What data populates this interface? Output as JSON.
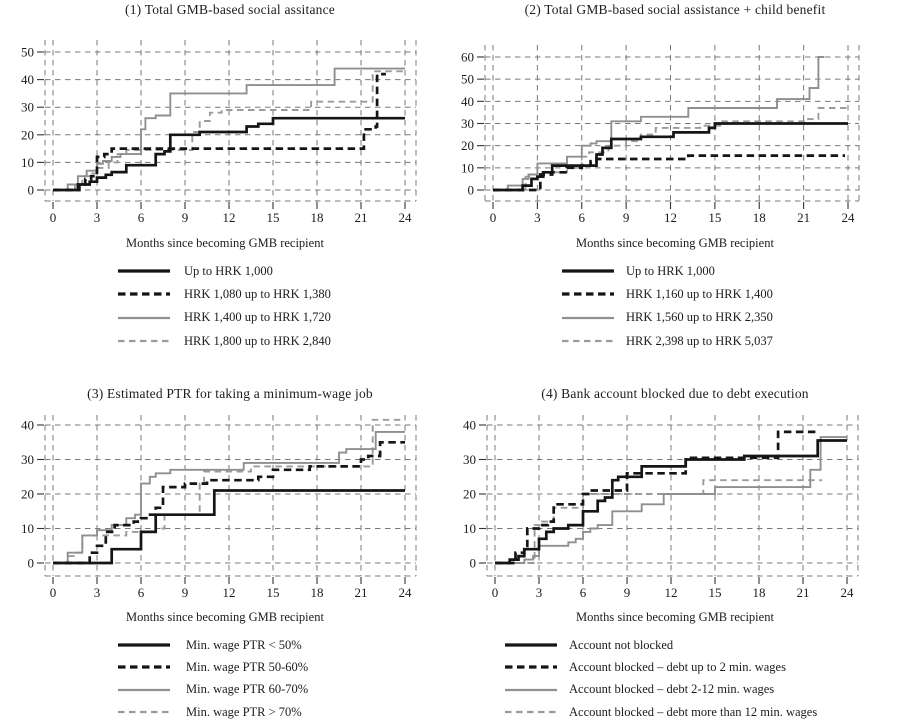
{
  "figure": {
    "xlabel": "Months since becoming GMB recipient"
  },
  "chart_data": [
    {
      "id": "1",
      "type": "line",
      "subtype": "step-cumulative",
      "title": "(1) Total GMB-based social assitance",
      "xlabel": "Months since becoming GMB recipient",
      "x_ticks": [
        0,
        3,
        6,
        9,
        12,
        15,
        18,
        21,
        24
      ],
      "y_ticks": [
        0,
        10,
        20,
        30,
        40,
        50
      ],
      "xlim": [
        0,
        24
      ],
      "ylim": [
        0,
        50
      ],
      "grid": "dashed",
      "legend_position": "below",
      "series": [
        {
          "name": "Up to HRK 1,000",
          "color": "#151515",
          "dash": "solid",
          "weight": "thick",
          "steps": [
            [
              0,
              0
            ],
            [
              1.7,
              2
            ],
            [
              2.5,
              3
            ],
            [
              3,
              4.5
            ],
            [
              3.6,
              5.5
            ],
            [
              4,
              6.5
            ],
            [
              5,
              9
            ],
            [
              7,
              13
            ],
            [
              7.6,
              14
            ],
            [
              8,
              20
            ],
            [
              10,
              21
            ],
            [
              13.2,
              23
            ],
            [
              14,
              24
            ],
            [
              15,
              26
            ],
            [
              24,
              26
            ]
          ]
        },
        {
          "name": "HRK 1,080 up to HRK 1,380",
          "color": "#151515",
          "dash": "dashed",
          "weight": "thick",
          "steps": [
            [
              0,
              0
            ],
            [
              1.8,
              2
            ],
            [
              2.2,
              4
            ],
            [
              2.6,
              5
            ],
            [
              3,
              12
            ],
            [
              3.5,
              13
            ],
            [
              4,
              15
            ],
            [
              21,
              15
            ],
            [
              21.2,
              22
            ],
            [
              22,
              23
            ],
            [
              22.1,
              42
            ],
            [
              22.7,
              42
            ]
          ]
        },
        {
          "name": "HRK 1,400 up to HRK 1,720",
          "color": "#8f8f8f",
          "dash": "solid",
          "weight": "thin",
          "steps": [
            [
              0,
              0
            ],
            [
              1,
              2
            ],
            [
              1.7,
              5
            ],
            [
              2.3,
              7
            ],
            [
              3,
              9.5
            ],
            [
              3.4,
              10.5
            ],
            [
              4,
              12
            ],
            [
              4.6,
              13
            ],
            [
              6,
              22
            ],
            [
              6.3,
              26
            ],
            [
              7,
              27
            ],
            [
              8,
              35
            ],
            [
              13.2,
              38
            ],
            [
              19.2,
              44
            ],
            [
              24,
              44
            ]
          ]
        },
        {
          "name": "HRK 1,800 up to HRK 2,840",
          "color": "#9b9b9b",
          "dash": "dashed",
          "weight": "thin",
          "steps": [
            [
              0,
              0
            ],
            [
              1.5,
              2
            ],
            [
              2,
              5
            ],
            [
              2.6,
              6
            ],
            [
              3,
              8
            ],
            [
              3.8,
              10
            ],
            [
              4.4,
              13
            ],
            [
              5,
              14.5
            ],
            [
              9.5,
              21
            ],
            [
              10,
              25
            ],
            [
              10.7,
              28
            ],
            [
              11.5,
              29
            ],
            [
              17.6,
              32
            ],
            [
              21.8,
              43
            ],
            [
              24,
              43
            ]
          ]
        }
      ]
    },
    {
      "id": "2",
      "type": "line",
      "subtype": "step-cumulative",
      "title": "(2) Total GMB-based social assistance + child benefit",
      "xlabel": "Months since becoming GMB recipient",
      "x_ticks": [
        0,
        3,
        6,
        9,
        12,
        15,
        18,
        21,
        24
      ],
      "y_ticks": [
        0,
        10,
        20,
        30,
        40,
        50,
        60
      ],
      "xlim": [
        0,
        24
      ],
      "ylim": [
        0,
        60
      ],
      "grid": "dashed",
      "legend_position": "below",
      "series": [
        {
          "name": "Up to HRK 1,000",
          "color": "#151515",
          "dash": "solid",
          "weight": "thick",
          "steps": [
            [
              0,
              0
            ],
            [
              2,
              2
            ],
            [
              2.6,
              5
            ],
            [
              3,
              6
            ],
            [
              3.4,
              8
            ],
            [
              4,
              11
            ],
            [
              7,
              16
            ],
            [
              7.4,
              19
            ],
            [
              8,
              23
            ],
            [
              10,
              24
            ],
            [
              12.2,
              26
            ],
            [
              14.6,
              28
            ],
            [
              15,
              30
            ],
            [
              24,
              30
            ]
          ]
        },
        {
          "name": "HRK 1,160 up to HRK 1,400",
          "color": "#151515",
          "dash": "dashed",
          "weight": "thick",
          "steps": [
            [
              0,
              0
            ],
            [
              3.2,
              7
            ],
            [
              4,
              8
            ],
            [
              5,
              10
            ],
            [
              6,
              11
            ],
            [
              6.6,
              13
            ],
            [
              7,
              14
            ],
            [
              13.2,
              15.5
            ],
            [
              23.8,
              15.5
            ]
          ]
        },
        {
          "name": "HRK 1,560 up to HRK 2,350",
          "color": "#8f8f8f",
          "dash": "solid",
          "weight": "thin",
          "steps": [
            [
              0,
              0
            ],
            [
              1,
              2
            ],
            [
              2,
              5
            ],
            [
              2.4,
              7
            ],
            [
              3,
              12
            ],
            [
              5,
              15
            ],
            [
              6,
              20
            ],
            [
              6.6,
              21
            ],
            [
              7,
              22
            ],
            [
              8,
              31
            ],
            [
              10,
              33
            ],
            [
              13.2,
              37
            ],
            [
              19.2,
              41
            ],
            [
              21.4,
              46
            ],
            [
              22,
              60
            ],
            [
              22.4,
              60
            ]
          ]
        },
        {
          "name": "HRK 2,398 up to HRK 5,037",
          "color": "#9b9b9b",
          "dash": "dashed",
          "weight": "thin",
          "steps": [
            [
              0,
              0
            ],
            [
              2.2,
              6
            ],
            [
              2.6,
              7
            ],
            [
              3,
              8
            ],
            [
              5,
              10
            ],
            [
              5.6,
              11
            ],
            [
              6,
              15
            ],
            [
              6.5,
              17
            ],
            [
              7.8,
              20
            ],
            [
              9,
              22
            ],
            [
              10,
              25
            ],
            [
              11,
              28
            ],
            [
              14,
              29
            ],
            [
              15.5,
              31
            ],
            [
              21.3,
              32
            ],
            [
              22,
              37
            ],
            [
              24,
              37
            ]
          ]
        }
      ]
    },
    {
      "id": "3",
      "type": "line",
      "subtype": "step-cumulative",
      "title": "(3) Estimated PTR for taking a minimum-wage job",
      "xlabel": "Months since becoming GMB recipient",
      "x_ticks": [
        0,
        3,
        6,
        9,
        12,
        15,
        18,
        21,
        24
      ],
      "y_ticks": [
        0,
        10,
        20,
        30,
        40
      ],
      "xlim": [
        0,
        24
      ],
      "ylim": [
        0,
        40
      ],
      "grid": "dashed",
      "legend_position": "below",
      "series": [
        {
          "name": "Min. wage PTR < 50%",
          "color": "#151515",
          "dash": "solid",
          "weight": "thick",
          "steps": [
            [
              0,
              0
            ],
            [
              4,
              4
            ],
            [
              6,
              9
            ],
            [
              7,
              14
            ],
            [
              11,
              21
            ],
            [
              24,
              21
            ]
          ]
        },
        {
          "name": "Min. wage PTR 50-60%",
          "color": "#151515",
          "dash": "dashed",
          "weight": "thick",
          "steps": [
            [
              0,
              0
            ],
            [
              2.5,
              3
            ],
            [
              3,
              5
            ],
            [
              3.6,
              9
            ],
            [
              4.2,
              11
            ],
            [
              5.5,
              12
            ],
            [
              6,
              13
            ],
            [
              6.5,
              14
            ],
            [
              7,
              16
            ],
            [
              7.5,
              22
            ],
            [
              9,
              23
            ],
            [
              10.5,
              24
            ],
            [
              14,
              25
            ],
            [
              15,
              27
            ],
            [
              17.5,
              28
            ],
            [
              21,
              30
            ],
            [
              21.5,
              31
            ],
            [
              22.3,
              35
            ],
            [
              24,
              35
            ]
          ]
        },
        {
          "name": "Min. wage PTR 60-70%",
          "color": "#8f8f8f",
          "dash": "solid",
          "weight": "thin",
          "steps": [
            [
              0,
              0
            ],
            [
              1,
              3
            ],
            [
              2,
              8
            ],
            [
              3,
              9.5
            ],
            [
              4,
              11
            ],
            [
              5,
              13
            ],
            [
              5.6,
              14
            ],
            [
              6,
              23
            ],
            [
              6.6,
              25
            ],
            [
              7,
              26
            ],
            [
              8,
              27
            ],
            [
              13,
              29
            ],
            [
              19.5,
              32
            ],
            [
              20,
              33
            ],
            [
              22,
              38
            ],
            [
              24,
              38
            ]
          ]
        },
        {
          "name": "Min. wage PTR > 70%",
          "color": "#9b9b9b",
          "dash": "dashed",
          "weight": "thin",
          "steps": [
            [
              0,
              0
            ],
            [
              1,
              2
            ],
            [
              1.5,
              3
            ],
            [
              2,
              8
            ],
            [
              5,
              9
            ],
            [
              7,
              10
            ],
            [
              7.6,
              14
            ],
            [
              10,
              23
            ],
            [
              10.3,
              26.5
            ],
            [
              13.5,
              28
            ],
            [
              21.8,
              41.5
            ],
            [
              24,
              41.5
            ]
          ]
        }
      ]
    },
    {
      "id": "4",
      "type": "line",
      "subtype": "step-cumulative",
      "title": "(4) Bank account blocked due to debt execution",
      "xlabel": "Months since becoming GMB recipient",
      "x_ticks": [
        0,
        3,
        6,
        9,
        12,
        15,
        18,
        21,
        24
      ],
      "y_ticks": [
        0,
        10,
        20,
        30,
        40
      ],
      "xlim": [
        0,
        24
      ],
      "ylim": [
        0,
        40
      ],
      "grid": "dashed",
      "legend_position": "below",
      "series": [
        {
          "name": "Account not blocked",
          "color": "#151515",
          "dash": "solid",
          "weight": "thick",
          "steps": [
            [
              0,
              0
            ],
            [
              1,
              1
            ],
            [
              1.6,
              2
            ],
            [
              2,
              4
            ],
            [
              3,
              7
            ],
            [
              3.5,
              9
            ],
            [
              4,
              10
            ],
            [
              5,
              11
            ],
            [
              6,
              15
            ],
            [
              7,
              18
            ],
            [
              7.5,
              19
            ],
            [
              8,
              24
            ],
            [
              8.4,
              25
            ],
            [
              10,
              28
            ],
            [
              13,
              30
            ],
            [
              17,
              31
            ],
            [
              22,
              35.5
            ],
            [
              24,
              35.5
            ]
          ]
        },
        {
          "name": "Account blocked – debt up to 2 min. wages",
          "color": "#151515",
          "dash": "dashed",
          "weight": "thick",
          "steps": [
            [
              0,
              0
            ],
            [
              1.4,
              3
            ],
            [
              2,
              4
            ],
            [
              2.2,
              10
            ],
            [
              3,
              11
            ],
            [
              3.6,
              12
            ],
            [
              4,
              17
            ],
            [
              6,
              20
            ],
            [
              6.5,
              21
            ],
            [
              9,
              26
            ],
            [
              13,
              30.5
            ],
            [
              19.3,
              38
            ],
            [
              21.9,
              38
            ]
          ]
        },
        {
          "name": "Account blocked – debt 2-12 min. wages",
          "color": "#8f8f8f",
          "dash": "solid",
          "weight": "thin",
          "steps": [
            [
              0,
              0
            ],
            [
              2,
              1
            ],
            [
              2.6,
              2
            ],
            [
              3,
              5
            ],
            [
              5,
              6
            ],
            [
              5.5,
              7
            ],
            [
              6,
              9
            ],
            [
              6.5,
              10
            ],
            [
              7,
              11
            ],
            [
              8,
              15
            ],
            [
              10,
              17
            ],
            [
              11.5,
              20
            ],
            [
              15,
              22
            ],
            [
              21.5,
              27
            ],
            [
              22.2,
              36.5
            ],
            [
              24,
              36.5
            ]
          ]
        },
        {
          "name": "Account blocked – debt more than 12 min. wages",
          "color": "#9b9b9b",
          "dash": "dashed",
          "weight": "thin",
          "steps": [
            [
              0,
              0
            ],
            [
              2.7,
              11
            ],
            [
              3.2,
              12
            ],
            [
              4,
              16
            ],
            [
              6,
              20
            ],
            [
              14,
              20
            ],
            [
              14.2,
              24
            ],
            [
              22.3,
              24
            ]
          ]
        }
      ]
    }
  ]
}
